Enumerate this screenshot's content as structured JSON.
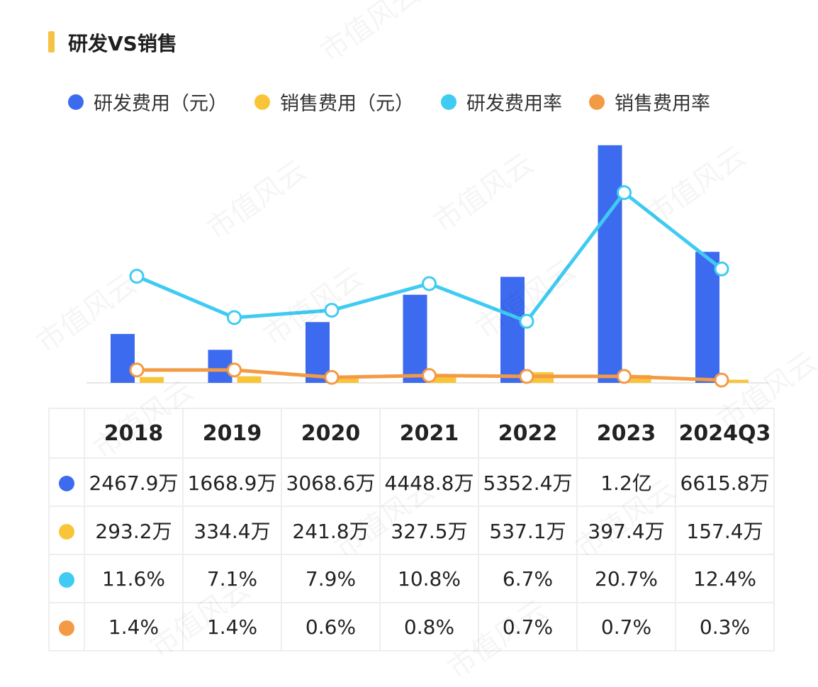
{
  "header": {
    "title": "研发VS销售",
    "accent_color": "#F6C244"
  },
  "watermark": "市值风云",
  "legend": [
    {
      "label": "研发费用（元）",
      "color": "#3D6BF0"
    },
    {
      "label": "销售费用（元）",
      "color": "#F9C538"
    },
    {
      "label": "研发费用率",
      "color": "#3FCBF2"
    },
    {
      "label": "销售费用率",
      "color": "#F39A44"
    }
  ],
  "table": {
    "columns": [
      "2018",
      "2019",
      "2020",
      "2021",
      "2022",
      "2023",
      "2024Q3"
    ],
    "rows": [
      {
        "color": "#3D6BF0",
        "values": [
          "2467.9万",
          "1668.9万",
          "3068.6万",
          "4448.8万",
          "5352.4万",
          "1.2亿",
          "6615.8万"
        ]
      },
      {
        "color": "#F9C538",
        "values": [
          "293.2万",
          "334.4万",
          "241.8万",
          "327.5万",
          "537.1万",
          "397.4万",
          "157.4万"
        ]
      },
      {
        "color": "#3FCBF2",
        "values": [
          "11.6%",
          "7.1%",
          "7.9%",
          "10.8%",
          "6.7%",
          "20.7%",
          "12.4%"
        ]
      },
      {
        "color": "#F39A44",
        "values": [
          "1.4%",
          "1.4%",
          "0.6%",
          "0.8%",
          "0.7%",
          "0.7%",
          "0.3%"
        ]
      }
    ]
  },
  "chart_data": {
    "type": "bar",
    "categories": [
      "2018",
      "2019",
      "2020",
      "2021",
      "2022",
      "2023",
      "2024Q3"
    ],
    "series": [
      {
        "name": "研发费用（元）",
        "type": "bar",
        "unit": "万元",
        "color": "#3D6BF0",
        "values": [
          2467.9,
          1668.9,
          3068.6,
          4448.8,
          5352.4,
          12000,
          6615.8
        ]
      },
      {
        "name": "销售费用（元）",
        "type": "bar",
        "unit": "万元",
        "color": "#F9C538",
        "values": [
          293.2,
          334.4,
          241.8,
          327.5,
          537.1,
          397.4,
          157.4
        ]
      },
      {
        "name": "研发费用率",
        "type": "line",
        "unit": "%",
        "color": "#3FCBF2",
        "values": [
          11.6,
          7.1,
          7.9,
          10.8,
          6.7,
          20.7,
          12.4
        ]
      },
      {
        "name": "销售费用率",
        "type": "line",
        "unit": "%",
        "color": "#F39A44",
        "values": [
          1.4,
          1.4,
          0.6,
          0.8,
          0.7,
          0.7,
          0.3
        ]
      }
    ],
    "ylim_bar": [
      0,
      11600
    ],
    "ylim_rate": [
      0,
      25
    ],
    "grid": false,
    "legend_position": "top-left"
  }
}
